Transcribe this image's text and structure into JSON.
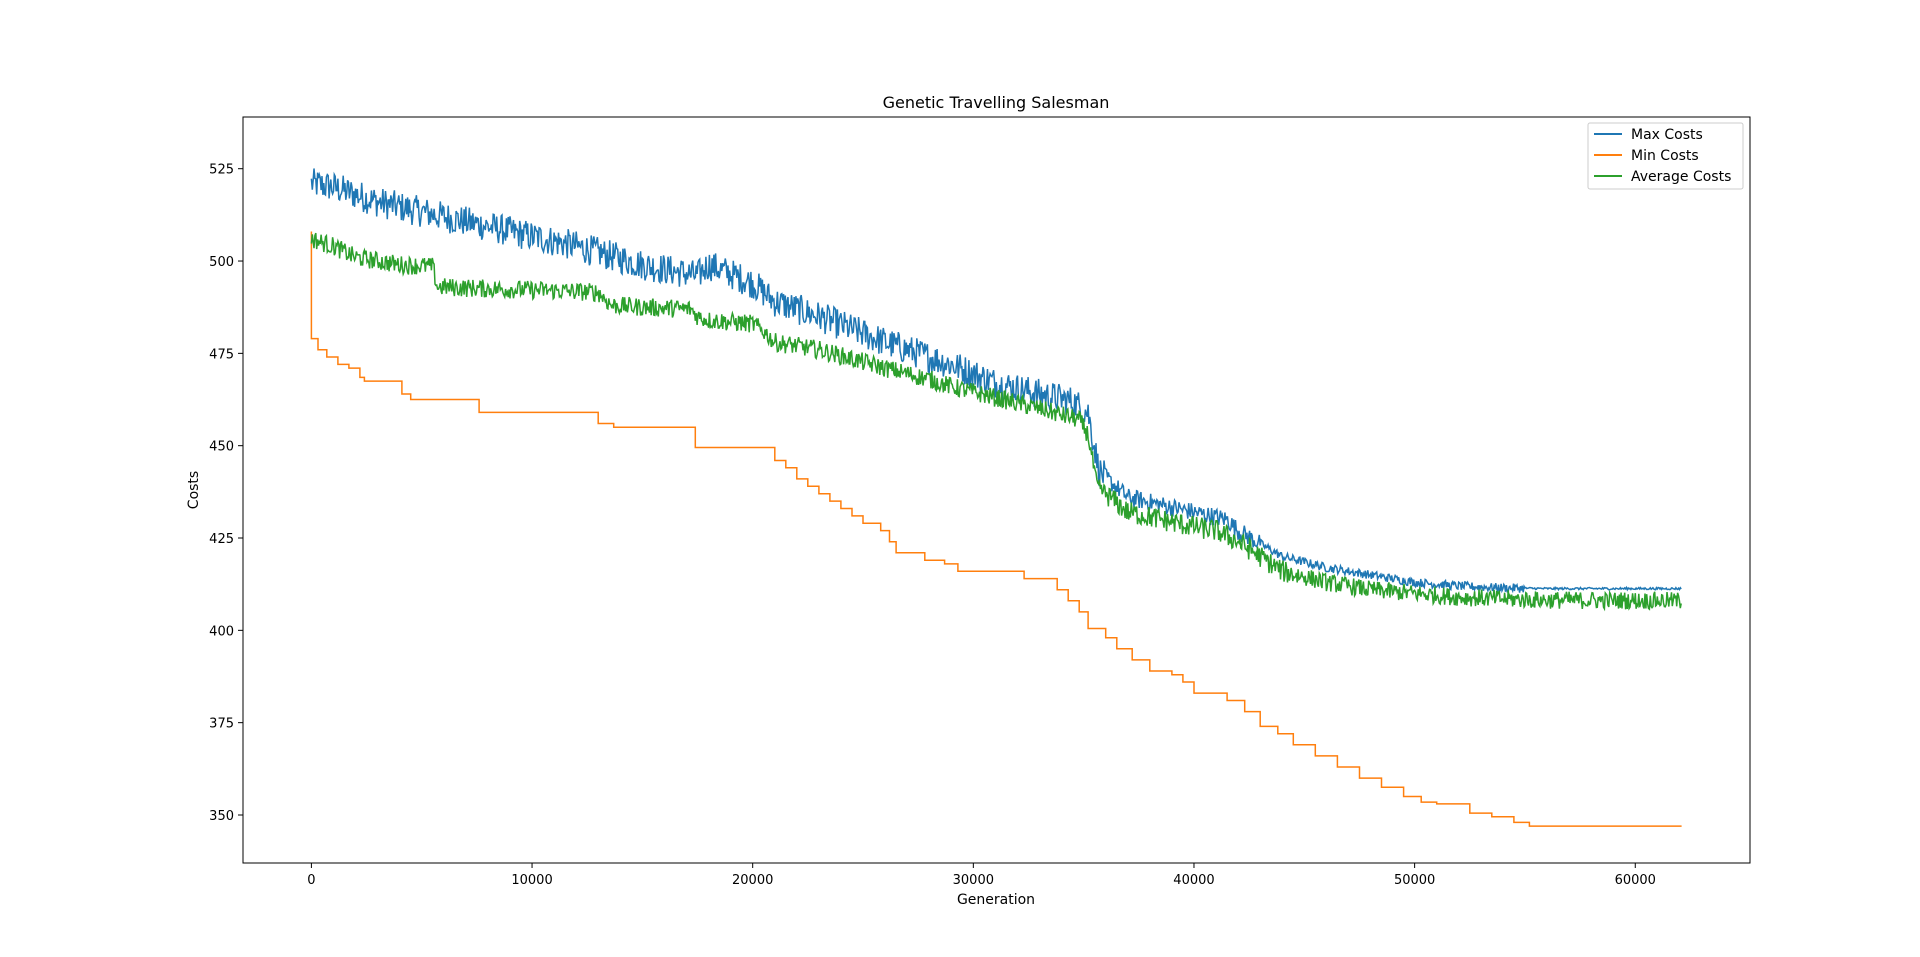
{
  "chart_data": {
    "type": "line",
    "title": "Genetic Travelling Salesman",
    "xlabel": "Generation",
    "ylabel": "Costs",
    "xlim": [
      -3100,
      65200
    ],
    "ylim": [
      337,
      539
    ],
    "xticks": [
      0,
      10000,
      20000,
      30000,
      40000,
      50000,
      60000
    ],
    "xtick_labels": [
      "0",
      "10000",
      "20000",
      "30000",
      "40000",
      "50000",
      "60000"
    ],
    "yticks": [
      350,
      375,
      400,
      425,
      450,
      475,
      500,
      525
    ],
    "ytick_labels": [
      "350",
      "375",
      "400",
      "425",
      "450",
      "475",
      "500",
      "525"
    ],
    "grid": false,
    "legend_position": "top-right",
    "series": [
      {
        "name": "Max Costs",
        "color": "#1f77b4",
        "x": [
          0,
          1000,
          3000,
          6000,
          9000,
          12000,
          15000,
          17500,
          18000,
          20000,
          21000,
          23000,
          26000,
          29000,
          31000,
          33000,
          34500,
          35200,
          35700,
          37000,
          40000,
          41500,
          42000,
          44000,
          46000,
          48000,
          50000,
          52000,
          54000,
          56000,
          62100
        ],
        "y": [
          521,
          520,
          516,
          512,
          508,
          504,
          499,
          496,
          499,
          494,
          489,
          485,
          478,
          472,
          467,
          464,
          462,
          459,
          443,
          436,
          432,
          430,
          427,
          420,
          417,
          415,
          413,
          412,
          411.5,
          411.3,
          411.3
        ],
        "noise": 3.5
      },
      {
        "name": "Min Costs",
        "color": "#ff7f0e",
        "x": [
          0,
          0,
          300,
          300,
          700,
          700,
          1200,
          1200,
          1700,
          1700,
          2200,
          2200,
          2400,
          2400,
          4100,
          4100,
          4500,
          4500,
          7600,
          7600,
          13000,
          13000,
          13700,
          13700,
          17400,
          17400,
          21000,
          21000,
          21500,
          21500,
          22000,
          22000,
          22500,
          22500,
          23000,
          23000,
          23500,
          23500,
          24000,
          24000,
          24500,
          24500,
          25000,
          25000,
          25800,
          25800,
          26200,
          26200,
          26500,
          26500,
          27800,
          27800,
          28700,
          28700,
          29300,
          29300,
          32300,
          32300,
          33800,
          33800,
          34300,
          34300,
          34800,
          34800,
          35200,
          35200,
          36000,
          36000,
          36500,
          36500,
          37200,
          37200,
          38000,
          38000,
          39000,
          39000,
          39500,
          39500,
          40000,
          40000,
          41500,
          41500,
          42300,
          42300,
          43000,
          43000,
          43800,
          43800,
          44500,
          44500,
          45500,
          45500,
          46500,
          46500,
          47500,
          47500,
          48500,
          48500,
          49500,
          49500,
          50300,
          50300,
          51000,
          51000,
          52500,
          52500,
          53500,
          53500,
          54500,
          54500,
          55200,
          55200,
          62100
        ],
        "y": [
          508,
          479,
          479,
          476,
          476,
          474,
          474,
          472,
          472,
          471,
          471,
          468.5,
          468.5,
          467.5,
          467.5,
          464,
          464,
          462.5,
          462.5,
          459,
          459,
          456,
          456,
          455,
          455,
          449.5,
          449.5,
          446,
          446,
          444,
          444,
          441,
          441,
          439,
          439,
          437,
          437,
          435,
          435,
          433,
          433,
          431,
          431,
          429,
          429,
          427,
          427,
          424,
          424,
          421,
          421,
          419,
          419,
          418,
          418,
          416,
          416,
          414,
          414,
          411,
          411,
          408,
          408,
          405,
          405,
          400.5,
          400.5,
          398,
          398,
          395,
          395,
          392,
          392,
          389,
          389,
          388,
          388,
          386,
          386,
          383,
          383,
          381,
          381,
          378,
          378,
          374,
          374,
          372,
          372,
          369,
          369,
          366,
          366,
          363,
          363,
          360,
          360,
          357.5,
          357.5,
          355,
          355,
          353.5,
          353.5,
          353,
          353,
          350.5,
          350.5,
          349.5,
          349.5,
          348,
          348,
          347,
          347
        ]
      },
      {
        "name": "Average Costs",
        "color": "#2ca02c",
        "x": [
          0,
          500,
          1000,
          2000,
          3000,
          4000,
          5500,
          5700,
          8000,
          11000,
          13000,
          13600,
          15000,
          17200,
          17500,
          18000,
          20000,
          20500,
          21000,
          23000,
          26000,
          28000,
          29000,
          31000,
          33000,
          34800,
          35200,
          35600,
          37000,
          40000,
          41000,
          42000,
          44000,
          46000,
          48000,
          50000,
          52000,
          54000,
          56000,
          62100
        ],
        "y": [
          506,
          505,
          504,
          501,
          500,
          499,
          498.5,
          493,
          492.5,
          492,
          491.5,
          488,
          487.5,
          487,
          485,
          484,
          483,
          481,
          478,
          476,
          471,
          468,
          466,
          463,
          460,
          457,
          453,
          439,
          432,
          428,
          427,
          424,
          416,
          413,
          411,
          410,
          409,
          408.5,
          408.2,
          408
        ]
      }
    ]
  }
}
